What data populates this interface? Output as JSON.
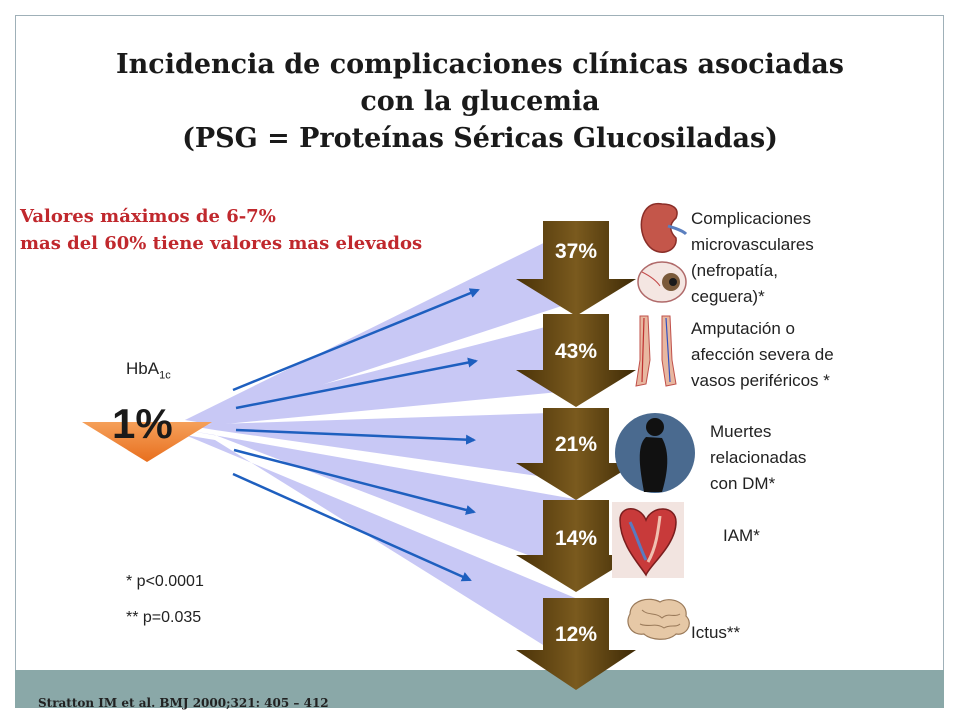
{
  "title": {
    "line1": "Incidencia de complicaciones clínicas asociadas",
    "line2": "con la glucemia",
    "line3": "(PSG = Proteínas Séricas Glucosiladas)"
  },
  "highlight": {
    "line1": "Valores máximos de 6-7%",
    "line2": "mas del 60% tiene valores mas elevados"
  },
  "reduction": {
    "label": "HbA",
    "label_sub": "1c",
    "value": "1%"
  },
  "outcomes": [
    {
      "percent": "37%",
      "lines": [
        "Complicaciones",
        "microvasculares",
        "(nefropatía,",
        "ceguera)*"
      ],
      "icons": [
        "kidney-icon",
        "eye-icon"
      ]
    },
    {
      "percent": "43%",
      "lines": [
        "Amputación o",
        "afección severa de",
        "vasos periféricos *"
      ],
      "icons": [
        "legs-icon"
      ]
    },
    {
      "percent": "21%",
      "lines": [
        "Muertes",
        "relacionadas",
        "con DM*"
      ],
      "icons": [
        "person-silhouette-icon"
      ]
    },
    {
      "percent": "14%",
      "lines": [
        "IAM*"
      ],
      "icons": [
        "heart-icon"
      ]
    },
    {
      "percent": "12%",
      "lines": [
        "Ictus**"
      ],
      "icons": [
        "brain-icon"
      ]
    }
  ],
  "notes": [
    "* p<0.0001",
    "** p=0.035"
  ],
  "citation": "Stratton IM et al. BMJ 2000;321: 405 – 412",
  "colors": {
    "title": "#1a1a1a",
    "highlight": "#c0282d",
    "arrow_shaft": "#c8c8f5",
    "arrow_down": "#6b4b12",
    "reduction_arrow": "#f08a3c",
    "connector": "#1e5fbf",
    "footer": "#8aa8a8"
  }
}
